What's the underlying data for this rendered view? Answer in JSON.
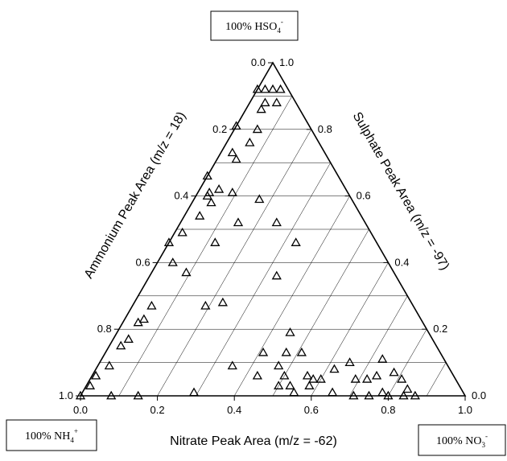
{
  "chart_data": {
    "type": "ternary",
    "corner_labels": {
      "top": {
        "text": "100% HSO",
        "sub": "4",
        "sup": "-"
      },
      "left": {
        "text": "100% NH",
        "sub": "4",
        "sup": "+"
      },
      "right": {
        "text": "100% NO",
        "sub": "3",
        "sup": "-"
      }
    },
    "bottom_axis_title": "Nitrate Peak Area (m/z = -62)",
    "left_axis_title": "Ammonium Peak Area (m/z = 18)",
    "right_axis_title": "Sulphate Peak Area (m/z = -97)",
    "bottom_ticks": [
      {
        "value": 0,
        "label": "0.0"
      },
      0.2,
      0.4,
      0.6,
      0.8,
      {
        "value": 1,
        "label": "1.0"
      }
    ],
    "left_ticks": [
      {
        "value": 0,
        "label": "0.0"
      },
      0.2,
      0.4,
      0.6,
      0.8,
      {
        "value": 1,
        "label": "1.0"
      }
    ],
    "right_ticks": [
      {
        "value": 0,
        "label": "0.0"
      },
      0.2,
      0.4,
      0.6,
      0.8,
      {
        "value": 1,
        "label": "1.0"
      }
    ],
    "grid_lines": [
      0.1,
      0.2,
      0.3,
      0.4,
      0.5,
      0.6,
      0.7,
      0.8,
      0.9
    ],
    "marker_color": "#000000",
    "nitrate": [
      0.0,
      0.02,
      0.04,
      0.06,
      0.04,
      0.04,
      0.07,
      0.0,
      0.06,
      0.06,
      0.03,
      0.05,
      0.0,
      0.05,
      0.09,
      0.17,
      0.03,
      0.05,
      0.04,
      0.15,
      0.25,
      0.12,
      0.33,
      0.02,
      0.04,
      0.09,
      0.33,
      0.19,
      0.23,
      0.05,
      0.04,
      0.03,
      0.03,
      0.01,
      0.0,
      0.08,
      0.15,
      0.29,
      0.41,
      0.47,
      0.51,
      0.45,
      0.47,
      0.58,
      0.43,
      0.5,
      0.56,
      0.6,
      0.5,
      0.53,
      0.58,
      0.65,
      0.71,
      0.75,
      0.8,
      0.84,
      0.87,
      0.69,
      0.74,
      0.78,
      0.81,
      0.62,
      0.65,
      0.73,
      0.72,
      0.01,
      0.04,
      0.05,
      0.0,
      0.03,
      0.55,
      0.78,
      0.35,
      0.84
    ],
    "sulphate": [
      0.92,
      0.92,
      0.92,
      0.92,
      0.88,
      0.86,
      0.88,
      0.81,
      0.8,
      0.76,
      0.73,
      0.71,
      0.66,
      0.62,
      0.61,
      0.59,
      0.6,
      0.58,
      0.54,
      0.52,
      0.52,
      0.46,
      0.46,
      0.49,
      0.4,
      0.37,
      0.36,
      0.27,
      0.28,
      0.27,
      0.22,
      0.15,
      0.09,
      0.03,
      0.0,
      0.0,
      0.0,
      0.01,
      0.13,
      0.13,
      0.13,
      0.19,
      0.09,
      0.05,
      0.06,
      0.06,
      0.06,
      0.05,
      0.03,
      0.03,
      0.03,
      0.01,
      0.0,
      0.0,
      0.0,
      0.0,
      0.0,
      0.05,
      0.06,
      0.07,
      0.05,
      0.08,
      0.1,
      0.11,
      0.05,
      0.06,
      0.17,
      0.23,
      0.46,
      0.61,
      0.01,
      0.01,
      0.09,
      0.02
    ]
  }
}
